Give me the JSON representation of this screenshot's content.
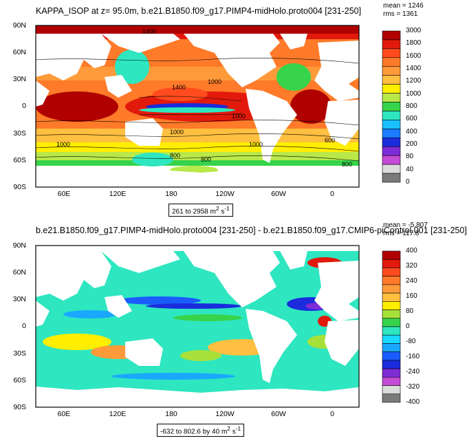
{
  "top": {
    "title": "KAPPA_ISOP at z=  95.0m, b.e21.B1850.f09_g17.PIMP4-midHolo.proto004 [231-250]",
    "mean": "mean = 1246",
    "rms": "rms = 1361",
    "range_text": "261 to 2958 m",
    "range_unit_sup": "2",
    "range_unit_tail": " s",
    "range_unit_sup2": "-1",
    "colorbar_labels": [
      "3000",
      "1800",
      "1600",
      "1400",
      "1200",
      "1000",
      "800",
      "600",
      "400",
      "200",
      "80",
      "40",
      "0"
    ],
    "colorbar_colors": [
      "#b00000",
      "#e21a0c",
      "#ff4b1e",
      "#ff7a29",
      "#ff9a3a",
      "#ffbf40",
      "#ffee00",
      "#b8e84a",
      "#37d34a",
      "#2ee6c0",
      "#1ac0ff",
      "#1a7cff",
      "#1a2cdc",
      "#7d2cd6",
      "#c44bd6",
      "#dcdcdc",
      "#7a7a7a"
    ],
    "contour_labels": [
      "1400",
      "1400",
      "1000",
      "1000",
      "1000",
      "1000",
      "1000",
      "800",
      "800",
      "800",
      "600"
    ]
  },
  "bottom": {
    "title": "b.e21.B1850.f09_g17.PIMP4-midHolo.proto004 [231-250] - b.e21.B1850.f09_g17.CMIP6-piControl.001 [231-250]",
    "mean": "mean = -5.807",
    "rms": "rms = 117.8",
    "range_text": "-632 to 802.6 by 40 m",
    "range_unit_sup": "2",
    "range_unit_tail": " s",
    "range_unit_sup2": "-1",
    "colorbar_labels": [
      "400",
      "320",
      "240",
      "160",
      "80",
      "0",
      "-80",
      "-160",
      "-240",
      "-320",
      "-400"
    ],
    "colorbar_colors": [
      "#b00000",
      "#e21a0c",
      "#ff4b1e",
      "#ff7a29",
      "#ff9a3a",
      "#ffbf40",
      "#ffee00",
      "#a8e03a",
      "#37d34a",
      "#2ee6c0",
      "#1ad8ff",
      "#1aa8ff",
      "#1a5cff",
      "#1a2cdc",
      "#7d2cd6",
      "#c44bd6",
      "#dcdcdc",
      "#7a7a7a"
    ]
  },
  "axes": {
    "lat_labels": [
      "90N",
      "60N",
      "30N",
      "0",
      "30S",
      "60S",
      "90S"
    ],
    "lon_labels": [
      "60E",
      "120E",
      "180",
      "120W",
      "60W",
      "0"
    ]
  }
}
